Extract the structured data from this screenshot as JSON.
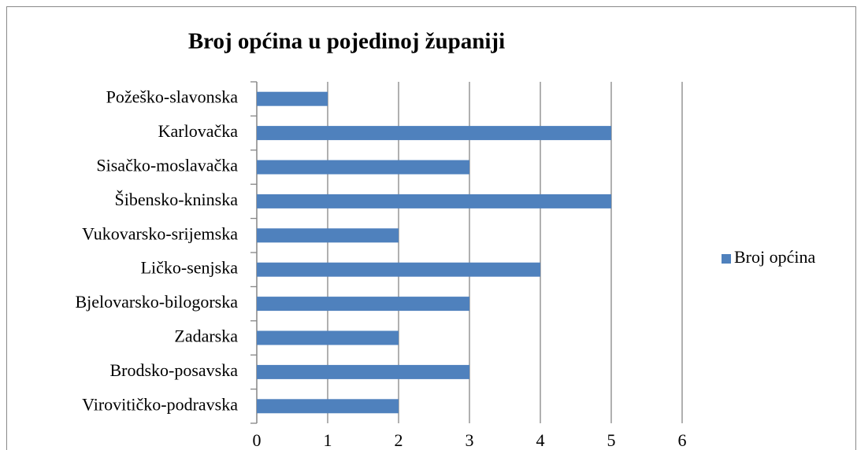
{
  "chart_data": {
    "type": "bar",
    "orientation": "horizontal",
    "title": "Broj općina u pojedinoj županiji",
    "categories": [
      "Požeško-slavonska",
      "Karlovačka",
      "Sisačko-moslavačka",
      "Šibensko-kninska",
      "Vukovarsko-srijemska",
      "Ličko-senjska",
      "Bjelovarsko-bilogorska",
      "Zadarska",
      "Brodsko-posavska",
      "Virovitičko-podravska"
    ],
    "series": [
      {
        "name": "Broj općina",
        "color": "#4f81bd",
        "values": [
          1,
          5,
          3,
          5,
          2,
          4,
          3,
          2,
          3,
          2
        ]
      }
    ],
    "xlim": [
      0,
      6
    ],
    "xticks": [
      0,
      1,
      2,
      3,
      4,
      5,
      6
    ],
    "grid": true,
    "legend": "right"
  }
}
